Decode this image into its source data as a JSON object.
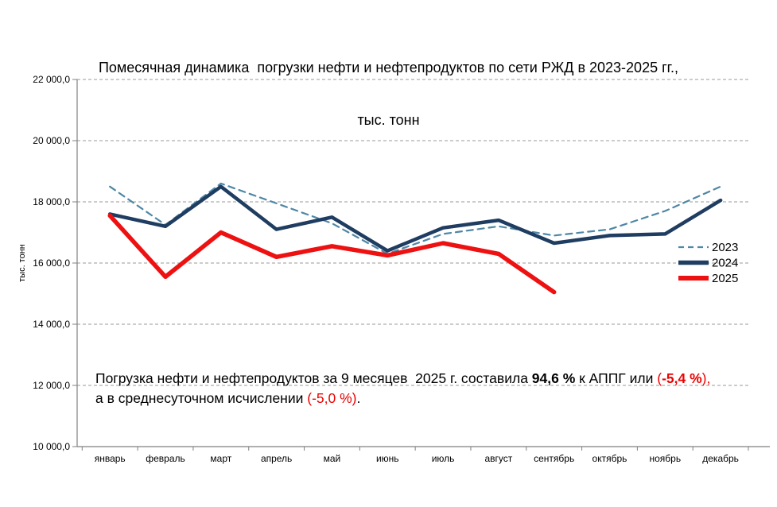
{
  "title": {
    "line1": "Помесячная динамика  погрузки нефти и нефтепродуктов по сети РЖД в 2023-2025 гг.,",
    "line2": "тыс. тонн"
  },
  "chart_data": {
    "type": "line",
    "categories": [
      "январь",
      "февраль",
      "март",
      "апрель",
      "май",
      "июнь",
      "июль",
      "август",
      "сентябрь",
      "октябрь",
      "ноябрь",
      "декабрь"
    ],
    "series": [
      {
        "name": "2023",
        "style": "dashed",
        "color": "#4e87a6",
        "stroke_width": 2.2,
        "values": [
          18500,
          17250,
          18600,
          17950,
          17300,
          16300,
          16950,
          17200,
          16900,
          17100,
          17700,
          18500
        ]
      },
      {
        "name": "2024",
        "style": "solid",
        "color": "#1f3c61",
        "stroke_width": 4.5,
        "values": [
          17600,
          17200,
          18500,
          17100,
          17500,
          16400,
          17150,
          17400,
          16650,
          16900,
          16950,
          18050
        ]
      },
      {
        "name": "2025",
        "style": "solid",
        "color": "#ee1111",
        "stroke_width": 5.5,
        "values": [
          17550,
          15550,
          17000,
          16200,
          16550,
          16250,
          16650,
          16300,
          15050,
          null,
          null,
          null
        ]
      }
    ],
    "ylabel": "тыс. тонн",
    "ylim": [
      10000,
      22000
    ],
    "ytick_step": 2000,
    "ytick_labels": [
      "22 000,0",
      "20 000,0",
      "18 000,0",
      "16 000,0",
      "14 000,0",
      "12 000,0",
      "10 000,0"
    ],
    "grid": true,
    "legend_position": "middle-right",
    "axis_color": "#808080",
    "grid_color": "#999999",
    "text_color": "#000000"
  },
  "annotation": {
    "lines": [
      [
        {
          "text": "Погрузка нефти и нефтепродуктов за 9 месяцев  2025 г. составила ",
          "bold": false,
          "color": "#000000"
        },
        {
          "text": "94,6 %",
          "bold": true,
          "color": "#000000"
        },
        {
          "text": " к АППГ или ",
          "bold": false,
          "color": "#000000"
        },
        {
          "text": "(",
          "bold": false,
          "color": "#ee0000"
        },
        {
          "text": "-5,4 %",
          "bold": true,
          "color": "#ee0000"
        },
        {
          "text": "),",
          "bold": false,
          "color": "#ee0000"
        }
      ],
      [
        {
          "text": "а в среднесуточном исчислении ",
          "bold": false,
          "color": "#000000"
        },
        {
          "text": "(-5,0 %)",
          "bold": false,
          "color": "#ee0000"
        },
        {
          "text": ".",
          "bold": false,
          "color": "#000000"
        }
      ]
    ]
  }
}
